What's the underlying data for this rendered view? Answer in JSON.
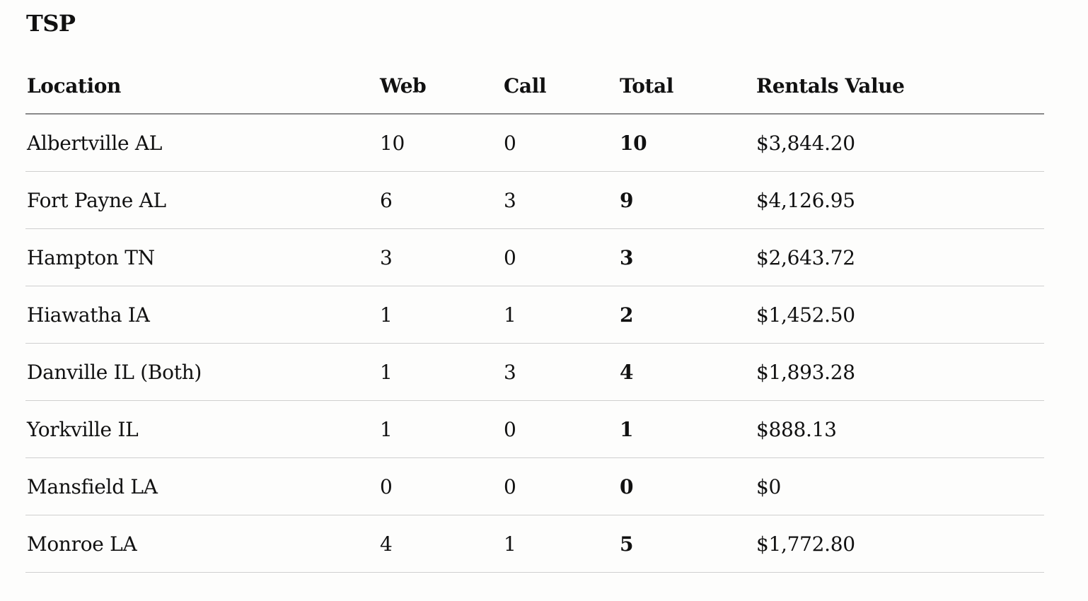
{
  "title": "TSP",
  "table": {
    "headers": {
      "location": "Location",
      "web": "Web",
      "call": "Call",
      "total": "Total",
      "rentals_value": "Rentals Value"
    },
    "rows": [
      {
        "location": "Albertville AL",
        "web": "10",
        "call": "0",
        "total": "10",
        "rentals_value": "$3,844.20"
      },
      {
        "location": "Fort Payne AL",
        "web": "6",
        "call": "3",
        "total": "9",
        "rentals_value": "$4,126.95"
      },
      {
        "location": "Hampton TN",
        "web": "3",
        "call": "0",
        "total": "3",
        "rentals_value": "$2,643.72"
      },
      {
        "location": "Hiawatha IA",
        "web": "1",
        "call": "1",
        "total": "2",
        "rentals_value": "$1,452.50"
      },
      {
        "location": "Danville IL (Both)",
        "web": "1",
        "call": "3",
        "total": "4",
        "rentals_value": "$1,893.28"
      },
      {
        "location": "Yorkville IL",
        "web": "1",
        "call": "0",
        "total": "1",
        "rentals_value": "$888.13"
      },
      {
        "location": "Mansfield LA",
        "web": "0",
        "call": "0",
        "total": "0",
        "rentals_value": "$0"
      },
      {
        "location": "Monroe LA",
        "web": "4",
        "call": "1",
        "total": "5",
        "rentals_value": "$1,772.80"
      }
    ]
  }
}
